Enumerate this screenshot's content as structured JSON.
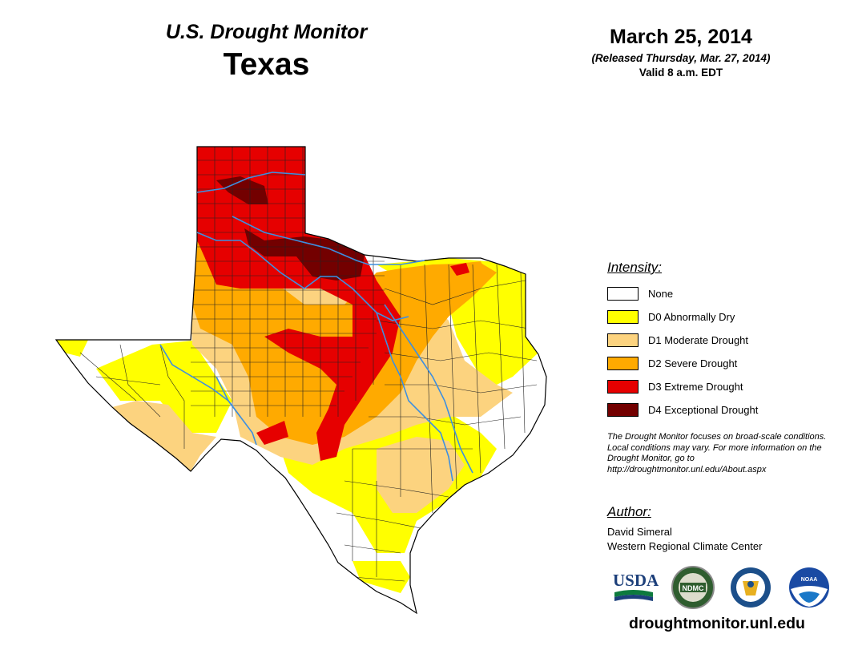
{
  "header": {
    "product_title": "U.S. Drought Monitor",
    "state": "Texas",
    "date": "March 25, 2014",
    "released": "(Released Thursday, Mar. 27, 2014)",
    "valid": "Valid 8 a.m. EDT"
  },
  "legend": {
    "title": "Intensity:",
    "items": [
      {
        "label": "None",
        "color": "#ffffff"
      },
      {
        "label": "D0 Abnormally Dry",
        "color": "#ffff00"
      },
      {
        "label": "D1 Moderate Drought",
        "color": "#fcd37f"
      },
      {
        "label": "D2 Severe Drought",
        "color": "#ffaa00"
      },
      {
        "label": "D3 Extreme Drought",
        "color": "#e60000"
      },
      {
        "label": "D4 Exceptional Drought",
        "color": "#730000"
      }
    ]
  },
  "note": "The Drought Monitor focuses on broad-scale conditions. Local conditions may vary. For more information on the Drought Monitor, go to http://droughtmonitor.unl.edu/About.aspx",
  "author": {
    "heading": "Author:",
    "name": "David Simeral",
    "org": "Western Regional Climate Center"
  },
  "logos": {
    "usda": "USDA",
    "ndmc": "NDMC",
    "noaa": "NOAA"
  },
  "colors": {
    "river": "#3d8fe0",
    "county_line": "#222222"
  },
  "site_url": "droughtmonitor.unl.edu"
}
